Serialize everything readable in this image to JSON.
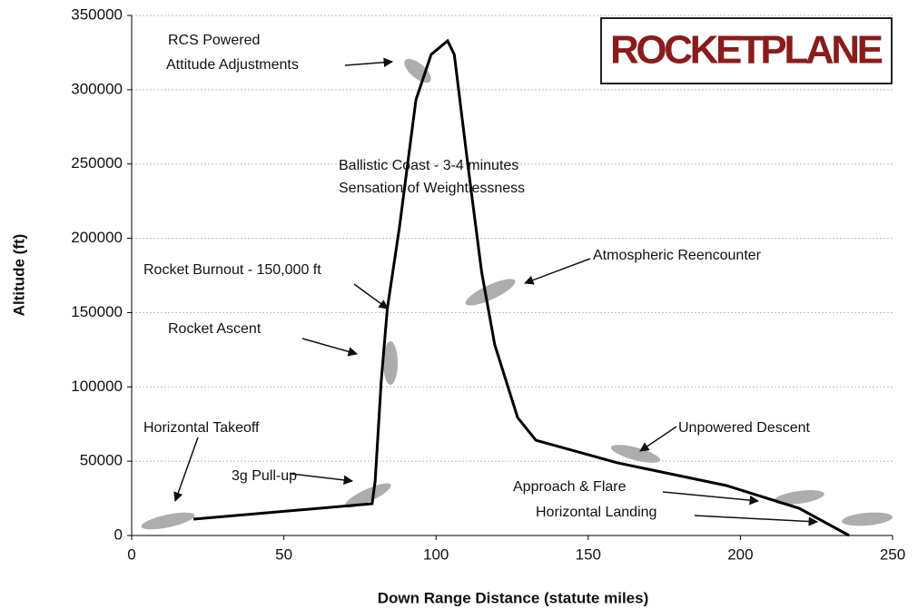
{
  "chart_data": {
    "type": "line",
    "x_label": "Down Range Distance (statute miles)",
    "y_label": "Altitude (ft)",
    "logo": "ROCKETPLANE",
    "x": [
      20.3,
      79,
      80,
      82,
      84,
      88,
      93.4,
      98.4,
      103.8,
      106,
      110.4,
      115,
      119.3,
      126.8,
      132.8,
      159.6,
      195.4,
      219.3,
      235.7
    ],
    "values": [
      11000,
      21400,
      36600,
      104000,
      152700,
      207700,
      293200,
      323700,
      332900,
      323700,
      250400,
      177100,
      128300,
      79400,
      64100,
      48900,
      33600,
      18300,
      0
    ],
    "color": "#000000",
    "xlim": [
      0,
      250
    ],
    "xticks": [
      0,
      50,
      100,
      150,
      200,
      250
    ],
    "ylim": [
      0,
      350000
    ],
    "yticks": [
      0,
      50000,
      100000,
      150000,
      200000,
      250000,
      300000,
      350000
    ],
    "grid": true,
    "annotations": [
      [
        "RCS Powered",
        "Attitude Adjustments"
      ],
      [
        "Ballistic Coast - 3-4 minutes",
        "Sensation of Weightlessness"
      ],
      [
        "Rocket Burnout - 150,000 ft"
      ],
      [
        "Rocket Ascent"
      ],
      [
        "Atmospheric Reencounter"
      ],
      [
        "Horizontal Takeoff"
      ],
      [
        "3g Pull-up"
      ],
      [
        "Unpowered Descent"
      ],
      [
        "Approach & Flare"
      ],
      [
        "Horizontal Landing"
      ]
    ]
  }
}
